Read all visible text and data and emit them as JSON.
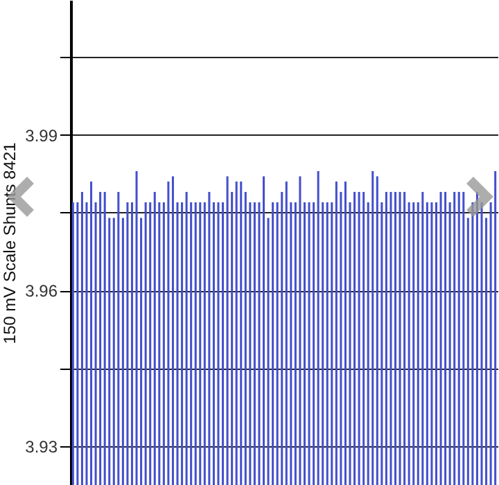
{
  "chart_data": {
    "type": "bar",
    "ylabel": "150 mV Scale  Shunts 8421",
    "categories": [
      null,
      null,
      null,
      null,
      null,
      null,
      null,
      null,
      null,
      null,
      null,
      null,
      null,
      null,
      null,
      null,
      null,
      null,
      null,
      null,
      null,
      null,
      null,
      null,
      null,
      null,
      null,
      null,
      null,
      null,
      null,
      null,
      null,
      null,
      null,
      null,
      null,
      null,
      null,
      null,
      null,
      null,
      null,
      null,
      null,
      null,
      null,
      null,
      null,
      null,
      null,
      null,
      null,
      null,
      null,
      null,
      null,
      null,
      null,
      null,
      null,
      null,
      null,
      null,
      null,
      null,
      null,
      null,
      null,
      null,
      null,
      null,
      null,
      null,
      null,
      null,
      null,
      null,
      null,
      null,
      null,
      null,
      null,
      null,
      null,
      null,
      null,
      null,
      null,
      null,
      null,
      null,
      null,
      null
    ],
    "values": [
      3.977,
      3.977,
      3.979,
      3.977,
      3.981,
      3.977,
      3.979,
      3.979,
      3.974,
      3.974,
      3.979,
      3.974,
      3.977,
      3.977,
      3.983,
      3.974,
      3.977,
      3.977,
      3.979,
      3.977,
      3.977,
      3.981,
      3.982,
      3.977,
      3.977,
      3.979,
      3.977,
      3.977,
      3.977,
      3.977,
      3.979,
      3.977,
      3.977,
      3.977,
      3.982,
      3.979,
      3.981,
      3.981,
      3.979,
      3.977,
      3.977,
      3.977,
      3.982,
      3.974,
      3.977,
      3.977,
      3.979,
      3.981,
      3.977,
      3.977,
      3.982,
      3.977,
      3.977,
      3.977,
      3.983,
      3.977,
      3.977,
      3.977,
      3.981,
      3.979,
      3.981,
      3.977,
      3.979,
      3.979,
      3.979,
      3.977,
      3.983,
      3.982,
      3.977,
      3.979,
      3.979,
      3.979,
      3.979,
      3.979,
      3.977,
      3.977,
      3.977,
      3.979,
      3.977,
      3.977,
      3.977,
      3.979,
      3.979,
      3.977,
      3.979,
      3.979,
      3.979,
      3.974,
      3.977,
      3.979,
      3.977,
      3.974,
      3.977,
      3.983
    ],
    "color": "#4450cc",
    "ylim": [
      3.9225,
      4.016
    ],
    "yticks": [
      3.93,
      {
        "value": 3.945,
        "label": null
      },
      3.96,
      {
        "value": 3.975,
        "label": null
      },
      3.99,
      {
        "value": 4.005,
        "label": null
      }
    ],
    "grid": "y",
    "tick_labels": "y"
  }
}
